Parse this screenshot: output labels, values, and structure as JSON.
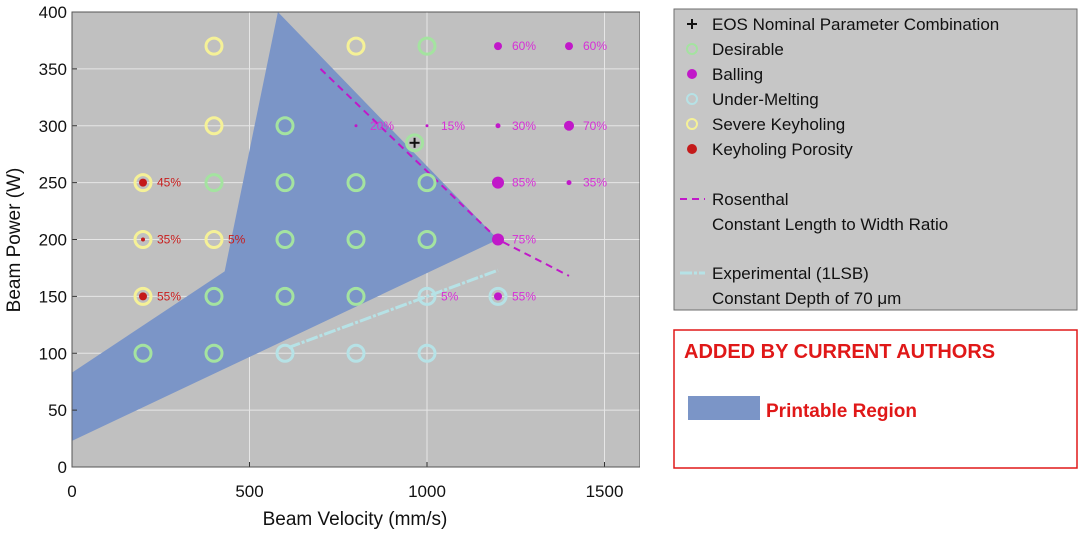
{
  "chart_data": {
    "type": "scatter",
    "xlabel": "Beam Velocity (mm/s)",
    "ylabel": "Beam Power (W)",
    "xlim": [
      0,
      1600
    ],
    "ylim": [
      0,
      400
    ],
    "xticks": [
      0,
      500,
      1000,
      1500
    ],
    "yticks": [
      0,
      50,
      100,
      150,
      200,
      250,
      300,
      350,
      400
    ],
    "grid": true,
    "legend_position": "right",
    "colors": {
      "plot_background": "#c0c0c0",
      "printable_region": "#7b95c7",
      "desirable": "#a4e3a0",
      "balling": "#c118c9",
      "under_melting": "#b6e2e6",
      "severe_keyholing": "#f5f197",
      "keyholing_porosity": "#c41a1a",
      "label_magenta": "#d72fd7",
      "label_red": "#c81e1e"
    },
    "printable_region": [
      [
        0,
        23
      ],
      [
        0,
        83
      ],
      [
        430,
        172
      ],
      [
        580,
        400
      ],
      [
        1200,
        200
      ],
      [
        0,
        23
      ]
    ],
    "series": [
      {
        "name": "EOS Nominal Parameter Combination",
        "marker": "plus",
        "points": [
          [
            965,
            285
          ]
        ]
      },
      {
        "name": "Desirable",
        "marker": "ring",
        "points": [
          [
            1000,
            370
          ],
          [
            600,
            300
          ],
          [
            965,
            285
          ],
          [
            400,
            250
          ],
          [
            600,
            250
          ],
          [
            800,
            250
          ],
          [
            1000,
            250
          ],
          [
            600,
            200
          ],
          [
            800,
            200
          ],
          [
            1000,
            200
          ],
          [
            400,
            150
          ],
          [
            600,
            150
          ],
          [
            800,
            150
          ],
          [
            200,
            100
          ],
          [
            400,
            100
          ]
        ]
      },
      {
        "name": "Balling",
        "marker": "dot",
        "points": [
          [
            1200,
            370
          ],
          [
            1400,
            370
          ],
          [
            800,
            300
          ],
          [
            1000,
            300
          ],
          [
            1200,
            300
          ],
          [
            1400,
            300
          ],
          [
            1200,
            250
          ],
          [
            1400,
            250
          ],
          [
            1200,
            200
          ],
          [
            1200,
            150
          ]
        ]
      },
      {
        "name": "Under-Melting",
        "marker": "ring",
        "points": [
          [
            1000,
            150
          ],
          [
            1200,
            150
          ],
          [
            600,
            100
          ],
          [
            800,
            100
          ],
          [
            1000,
            100
          ]
        ]
      },
      {
        "name": "Severe Keyholing",
        "marker": "ring",
        "points": [
          [
            400,
            370
          ],
          [
            800,
            370
          ],
          [
            400,
            300
          ],
          [
            200,
            250
          ],
          [
            200,
            200
          ],
          [
            400,
            200
          ],
          [
            200,
            150
          ]
        ]
      },
      {
        "name": "Keyholing Porosity",
        "marker": "dot",
        "points": [
          [
            200,
            250
          ],
          [
            200,
            200
          ],
          [
            200,
            150
          ]
        ]
      },
      {
        "name": "Rosenthal Constant Length to Width Ratio",
        "marker": "dashed-line",
        "points": [
          [
            700,
            350
          ],
          [
            1200,
            200
          ],
          [
            1400,
            168
          ]
        ]
      },
      {
        "name": "Experimental (1LSB) Constant Depth of 70 μm",
        "marker": "line",
        "points": [
          [
            610,
            105
          ],
          [
            1200,
            173
          ]
        ]
      }
    ],
    "annotations": [
      {
        "text": "60%",
        "x": 1200,
        "y": 370,
        "color": "magenta"
      },
      {
        "text": "60%",
        "x": 1400,
        "y": 370,
        "color": "magenta"
      },
      {
        "text": "20%",
        "x": 800,
        "y": 300,
        "color": "magenta"
      },
      {
        "text": "15%",
        "x": 1000,
        "y": 300,
        "color": "magenta"
      },
      {
        "text": "30%",
        "x": 1200,
        "y": 300,
        "color": "magenta"
      },
      {
        "text": "70%",
        "x": 1400,
        "y": 300,
        "color": "magenta"
      },
      {
        "text": "85%",
        "x": 1200,
        "y": 250,
        "color": "magenta"
      },
      {
        "text": "35%",
        "x": 1400,
        "y": 250,
        "color": "magenta"
      },
      {
        "text": "75%",
        "x": 1200,
        "y": 200,
        "color": "magenta"
      },
      {
        "text": "55%",
        "x": 1200,
        "y": 150,
        "color": "magenta"
      },
      {
        "text": "5%",
        "x": 1000,
        "y": 150,
        "color": "magenta"
      },
      {
        "text": "45%",
        "x": 200,
        "y": 250,
        "color": "red"
      },
      {
        "text": "35%",
        "x": 200,
        "y": 200,
        "color": "red"
      },
      {
        "text": "55%",
        "x": 200,
        "y": 150,
        "color": "red"
      },
      {
        "text": "5%",
        "x": 400,
        "y": 200,
        "color": "red"
      }
    ]
  },
  "legend": {
    "items": [
      {
        "label": "EOS Nominal Parameter Combination",
        "symbol": "plus"
      },
      {
        "label": "Desirable",
        "symbol": "desirable"
      },
      {
        "label": "Balling",
        "symbol": "balling"
      },
      {
        "label": "Under-Melting",
        "symbol": "under-melting"
      },
      {
        "label": "Severe Keyholing",
        "symbol": "severe-keyholing"
      },
      {
        "label": "Keyholing Porosity",
        "symbol": "keyholing-porosity"
      }
    ],
    "rosenthal_line1": "Rosenthal",
    "rosenthal_line2": "Constant Length to Width Ratio",
    "experimental_line1": "Experimental (1LSB)",
    "experimental_line2": "Constant Depth of 70 μm"
  },
  "added_box": {
    "title": "ADDED BY CURRENT AUTHORS",
    "item_label": "Printable Region"
  }
}
